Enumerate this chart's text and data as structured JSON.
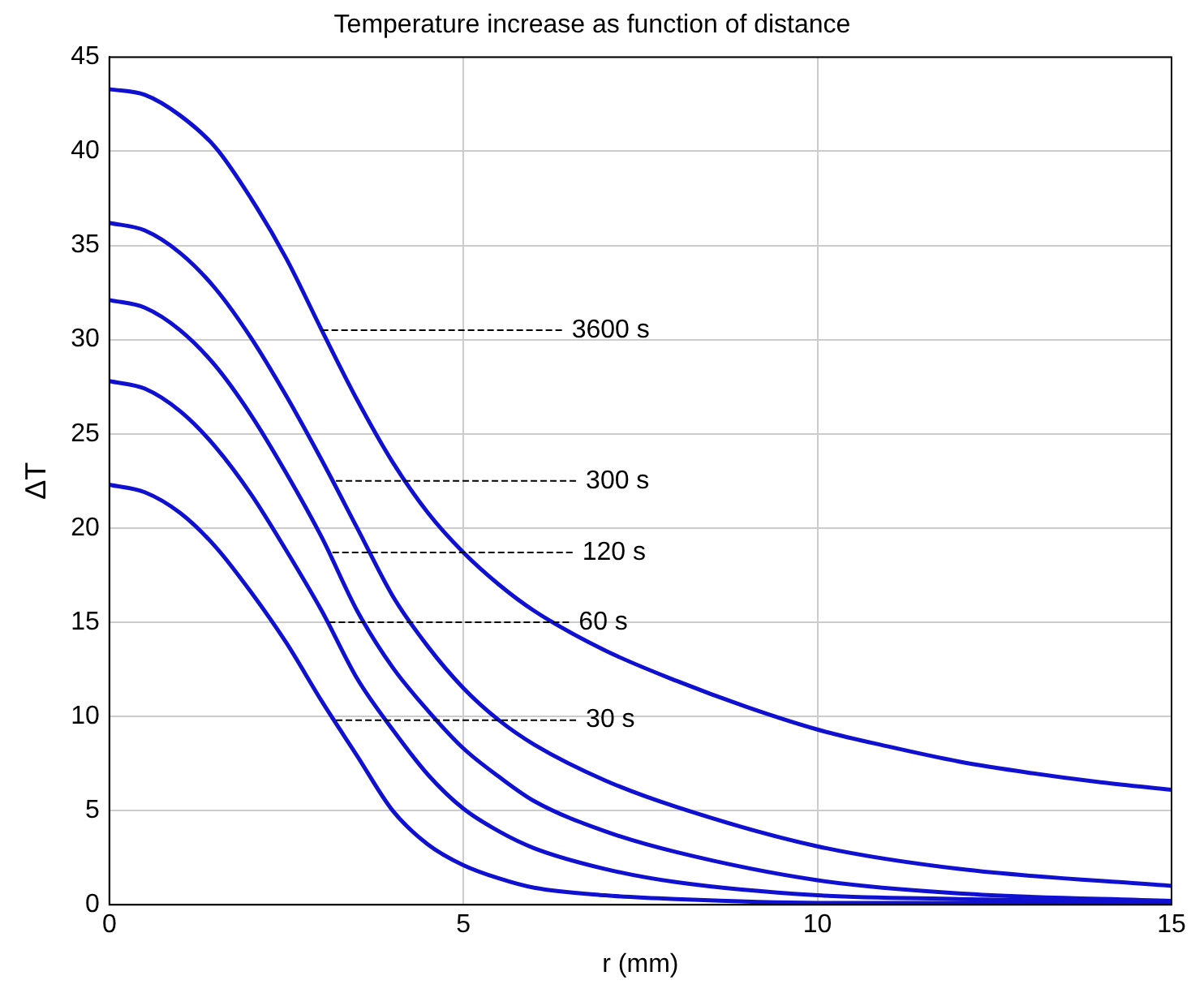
{
  "chart_data": {
    "type": "line",
    "title": "Temperature increase as function of distance",
    "xlabel": "r (mm)",
    "ylabel": "ΔT",
    "xlim": [
      0,
      15
    ],
    "xticks": [
      0,
      5,
      10,
      15
    ],
    "ylim": [
      0,
      45
    ],
    "yticks": [
      0,
      5,
      10,
      15,
      20,
      25,
      30,
      35,
      40,
      45
    ],
    "grid": true,
    "marker": "none",
    "line_style": "solid",
    "series": [
      {
        "color": "#1010d0",
        "x": [
          0,
          0.5,
          1,
          1.5,
          2,
          2.5,
          3,
          3.5,
          4,
          4.5,
          5,
          5.5,
          6,
          7,
          8,
          9,
          10,
          11,
          12,
          13,
          14,
          15
        ],
        "values": [
          43.3,
          43.0,
          41.9,
          40.2,
          37.5,
          34.3,
          30.5,
          26.8,
          23.5,
          20.8,
          18.7,
          17.0,
          15.6,
          13.5,
          11.9,
          10.5,
          9.3,
          8.4,
          7.6,
          7.0,
          6.5,
          6.1
        ]
      },
      {
        "color": "#1010d0",
        "x": [
          0,
          0.5,
          1,
          1.5,
          2,
          2.5,
          3,
          3.5,
          4,
          4.5,
          5,
          5.5,
          6,
          7,
          8,
          10,
          12,
          15
        ],
        "values": [
          36.2,
          35.8,
          34.6,
          32.7,
          30.1,
          27.0,
          23.6,
          20.0,
          16.4,
          13.7,
          11.5,
          9.8,
          8.5,
          6.6,
          5.2,
          3.1,
          1.9,
          1.0
        ]
      },
      {
        "color": "#1010d0",
        "x": [
          0,
          0.5,
          1,
          1.5,
          2,
          2.5,
          3,
          3.5,
          4,
          4.5,
          5,
          5.5,
          6,
          7,
          8,
          10,
          12,
          15
        ],
        "values": [
          32.1,
          31.7,
          30.5,
          28.6,
          26.0,
          22.9,
          19.5,
          15.6,
          12.6,
          10.3,
          8.3,
          6.8,
          5.5,
          3.9,
          2.8,
          1.3,
          0.6,
          0.2
        ]
      },
      {
        "color": "#1010d0",
        "x": [
          0,
          0.5,
          1,
          1.5,
          2,
          2.5,
          3,
          3.5,
          4,
          4.5,
          5,
          5.5,
          6,
          7,
          8,
          10,
          12,
          15
        ],
        "values": [
          27.8,
          27.4,
          26.2,
          24.3,
          21.8,
          18.8,
          15.6,
          12.0,
          9.3,
          6.9,
          5.1,
          3.9,
          3.0,
          1.9,
          1.2,
          0.5,
          0.3,
          0.1
        ]
      },
      {
        "color": "#1010d0",
        "x": [
          0,
          0.5,
          1,
          1.5,
          2,
          2.5,
          3,
          3.5,
          4,
          4.5,
          5,
          5.5,
          6,
          7,
          8,
          10,
          12,
          15
        ],
        "values": [
          22.3,
          21.9,
          20.8,
          19.0,
          16.6,
          13.9,
          10.8,
          7.9,
          5.0,
          3.2,
          2.1,
          1.4,
          0.9,
          0.5,
          0.3,
          0.1,
          0.1,
          0.0
        ]
      }
    ],
    "annotations": [
      {
        "text": "3600 s",
        "x": 3,
        "y": 30.5
      },
      {
        "text": "300 s",
        "x": 3.2,
        "y": 22.5
      },
      {
        "text": "120 s",
        "x": 3.15,
        "y": 18.7
      },
      {
        "text": "60 s",
        "x": 3.1,
        "y": 15
      },
      {
        "text": "30 s",
        "x": 3.2,
        "y": 9.8
      }
    ]
  }
}
